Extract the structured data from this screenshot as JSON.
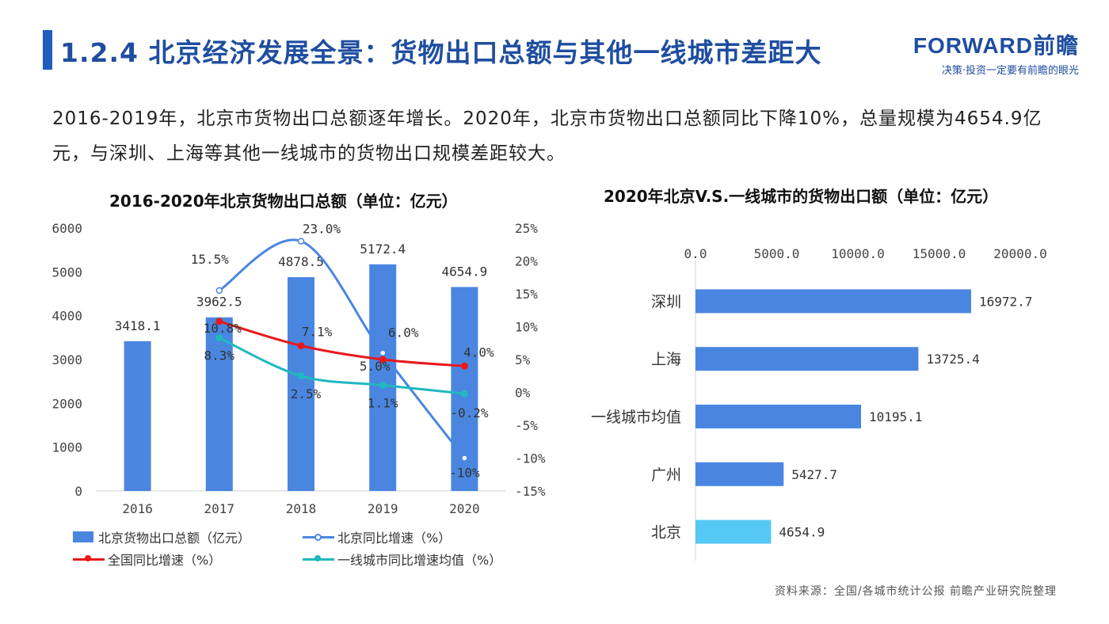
{
  "header": {
    "title": "1.2.4 北京经济发展全景：货物出口总额与其他一线城市差距大",
    "logo_main": "FORWARD前瞻",
    "logo_sub": "决策·投资一定要有前瞻的眼光"
  },
  "description": "2016-2019年，北京市货物出口总额逐年增长。2020年，北京市货物出口总额同比下降10%，总量规模为4654.9亿元，与深圳、上海等其他一线城市的货物出口规模差距较大。",
  "source": "资料来源：全国/各城市统计公报 前瞻产业研究院整理",
  "colors": {
    "bar": "#4a86e0",
    "bar_highlight": "#55c8f5",
    "beijing_growth": "#4a86e0",
    "national_growth": "#e8191c",
    "tier1_growth": "#20b8c0",
    "title": "#1f4ea0"
  },
  "chart_data": [
    {
      "type": "bar",
      "title": "2016-2020年北京货物出口总额（单位：亿元）",
      "categories": [
        "2016",
        "2017",
        "2018",
        "2019",
        "2020"
      ],
      "y_ticks": [
        "0",
        "1000",
        "2000",
        "3000",
        "4000",
        "5000",
        "6000"
      ],
      "y2_ticks": [
        "-15%",
        "-10%",
        "-5%",
        "0%",
        "5%",
        "10%",
        "15%",
        "20%",
        "25%"
      ],
      "ylim": [
        0,
        6000
      ],
      "y2lim": [
        -15,
        25
      ],
      "series": [
        {
          "name": "北京货物出口总额（亿元）",
          "kind": "bar",
          "axis": "left",
          "values": [
            3418.1,
            3962.5,
            4878.5,
            5172.4,
            4654.9
          ],
          "labels": [
            "3418.1",
            "3962.5",
            "4878.5",
            "5172.4",
            "4654.9"
          ]
        },
        {
          "name": "北京同比增速（%）",
          "kind": "line",
          "axis": "right",
          "values": [
            null,
            15.5,
            23.0,
            6.0,
            -10.0
          ],
          "labels": [
            "",
            "15.5%",
            "23.0%",
            "6.0%",
            "-10%"
          ]
        },
        {
          "name": "全国同比增速（%）",
          "kind": "line",
          "axis": "right",
          "values": [
            null,
            10.8,
            7.1,
            5.0,
            4.0
          ],
          "labels": [
            "",
            "10.8%",
            "7.1%",
            "5.0%",
            "4.0%"
          ]
        },
        {
          "name": "一线城市同比增速均值（%）",
          "kind": "line",
          "axis": "right",
          "values": [
            null,
            8.3,
            2.5,
            1.1,
            -0.2
          ],
          "labels": [
            "",
            "8.3%",
            "2.5%",
            "1.1%",
            "-0.2%"
          ]
        }
      ],
      "legend_position": "bottom",
      "grid": false
    },
    {
      "type": "bar",
      "orientation": "horizontal",
      "title": "2020年北京V.S.一线城市的货物出口额（单位：亿元）",
      "categories": [
        "深圳",
        "上海",
        "一线城市均值",
        "广州",
        "北京"
      ],
      "values": [
        16972.7,
        13725.4,
        10195.1,
        5427.7,
        4654.9
      ],
      "labels": [
        "16972.7",
        "13725.4",
        "10195.1",
        "5427.7",
        "4654.9"
      ],
      "x_ticks": [
        "0.0",
        "5000.0",
        "10000.0",
        "15000.0",
        "20000.0"
      ],
      "xlim": [
        0,
        20000
      ],
      "highlight": "北京",
      "grid": false
    }
  ]
}
